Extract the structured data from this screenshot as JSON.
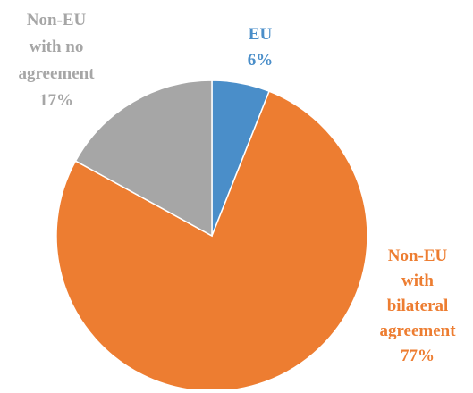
{
  "chart_data": {
    "type": "pie",
    "title": "",
    "start_angle_deg": 0,
    "direction": "clockwise",
    "slices": [
      {
        "category_lines": [
          "EU"
        ],
        "value_label": "6%",
        "value": 6,
        "color": "#4a8ec9"
      },
      {
        "category_lines": [
          "Non-EU",
          "with",
          "bilateral",
          "agreement"
        ],
        "value_label": "77%",
        "value": 77,
        "color": "#ed7d31"
      },
      {
        "category_lines": [
          "Non-EU",
          "with no",
          "agreement"
        ],
        "value_label": "17%",
        "value": 17,
        "color": "#a6a6a6"
      }
    ],
    "legend": "none",
    "data_labels": "outside"
  }
}
